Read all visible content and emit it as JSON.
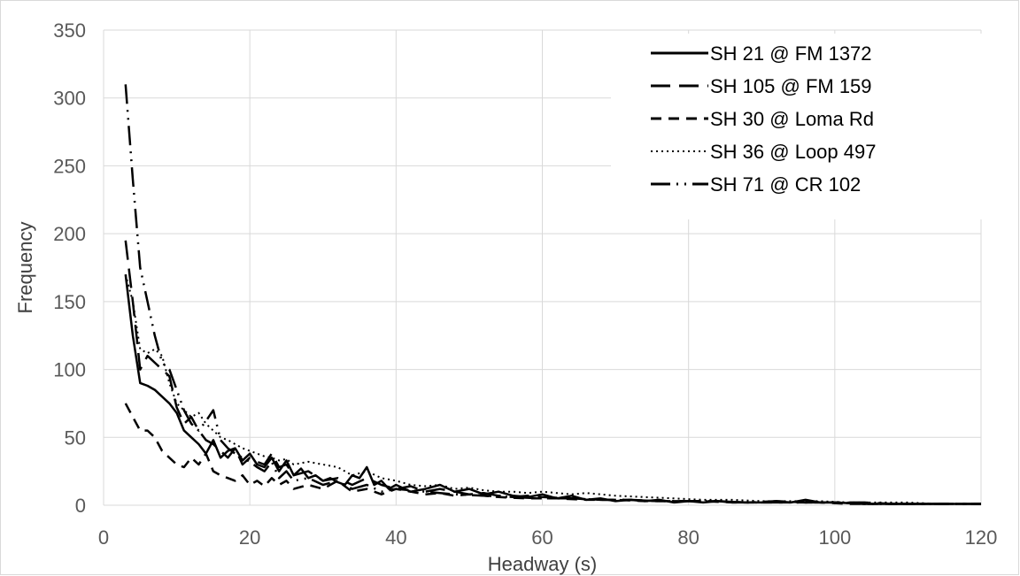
{
  "chart_data": {
    "type": "line",
    "title": "",
    "xlabel": "Headway (s)",
    "ylabel": "Frequency",
    "xlim": [
      0,
      120
    ],
    "ylim": [
      0,
      350
    ],
    "xticks": [
      "0",
      "20",
      "40",
      "60",
      "80",
      "100",
      "120"
    ],
    "yticks": [
      "0",
      "50",
      "100",
      "150",
      "200",
      "250",
      "300",
      "350"
    ],
    "grid": true,
    "legend_position": "top-right",
    "colors": {
      "line": "#000000",
      "grid": "#d9d9d9",
      "tick_text": "#595959",
      "axis_title": "#404040"
    },
    "series": [
      {
        "name": "SH 21 @ FM 1372",
        "style": "solid",
        "x": [
          3,
          4,
          5,
          6,
          7,
          8,
          9,
          10,
          11,
          12,
          13,
          14,
          15,
          16,
          17,
          18,
          19,
          20,
          21,
          22,
          23,
          24,
          25,
          26,
          27,
          28,
          29,
          30,
          31,
          32,
          33,
          34,
          35,
          36,
          37,
          38,
          39,
          40,
          42,
          44,
          46,
          48,
          50,
          52,
          54,
          56,
          58,
          60,
          62,
          64,
          66,
          68,
          70,
          72,
          74,
          76,
          78,
          80,
          82,
          84,
          86,
          88,
          90,
          92,
          94,
          96,
          98,
          100,
          104,
          108,
          112,
          116,
          120
        ],
        "values": [
          170,
          125,
          90,
          88,
          85,
          80,
          75,
          68,
          55,
          50,
          45,
          38,
          48,
          35,
          40,
          42,
          33,
          38,
          30,
          28,
          35,
          25,
          33,
          22,
          27,
          20,
          22,
          18,
          20,
          17,
          15,
          22,
          20,
          28,
          15,
          18,
          12,
          15,
          10,
          12,
          15,
          10,
          12,
          8,
          10,
          7,
          6,
          8,
          5,
          7,
          4,
          5,
          3,
          4,
          3,
          4,
          2,
          3,
          2,
          3,
          2,
          2,
          2,
          3,
          2,
          4,
          2,
          2,
          1,
          1,
          1,
          1,
          1
        ]
      },
      {
        "name": "SH 105 @ FM 159",
        "style": "longdash",
        "x": [
          3,
          4,
          5,
          6,
          7,
          8,
          9,
          10,
          11,
          12,
          13,
          14,
          15,
          16,
          17,
          18,
          19,
          20,
          21,
          22,
          23,
          24,
          25,
          26,
          28,
          30,
          32,
          34,
          36,
          38,
          40,
          42,
          44,
          46,
          48,
          50,
          52,
          54,
          56,
          58,
          60,
          64,
          68,
          72,
          76,
          80,
          84,
          88,
          92,
          96,
          100,
          104,
          108,
          112,
          116,
          120
        ],
        "values": [
          195,
          150,
          100,
          110,
          105,
          100,
          95,
          72,
          60,
          65,
          55,
          48,
          45,
          40,
          35,
          42,
          30,
          35,
          32,
          30,
          38,
          28,
          30,
          22,
          25,
          18,
          20,
          15,
          20,
          15,
          12,
          14,
          10,
          12,
          10,
          8,
          9,
          7,
          6,
          7,
          6,
          5,
          4,
          4,
          3,
          3,
          3,
          2,
          3,
          2,
          2,
          2,
          1,
          1,
          1,
          1
        ]
      },
      {
        "name": "SH 30 @ Loma Rd",
        "style": "dash",
        "x": [
          3,
          4,
          5,
          6,
          7,
          8,
          9,
          10,
          11,
          12,
          13,
          14,
          15,
          16,
          17,
          18,
          19,
          20,
          21,
          22,
          23,
          24,
          25,
          26,
          28,
          30,
          32,
          34,
          36,
          38,
          40,
          42,
          44,
          46,
          48,
          50,
          54,
          58,
          62,
          66,
          70,
          74,
          78,
          82,
          86,
          90,
          94,
          98,
          102,
          106,
          110,
          114,
          120
        ],
        "values": [
          75,
          65,
          55,
          55,
          50,
          40,
          35,
          30,
          28,
          35,
          30,
          38,
          25,
          22,
          20,
          18,
          22,
          15,
          18,
          14,
          20,
          15,
          18,
          12,
          15,
          12,
          18,
          10,
          12,
          8,
          12,
          10,
          8,
          9,
          7,
          8,
          6,
          5,
          5,
          4,
          4,
          3,
          3,
          3,
          2,
          2,
          2,
          2,
          1,
          1,
          1,
          1,
          1
        ]
      },
      {
        "name": "SH 36 @ Loop 497",
        "style": "dot",
        "x": [
          3,
          4,
          5,
          6,
          7,
          8,
          9,
          10,
          11,
          12,
          13,
          14,
          15,
          16,
          17,
          18,
          19,
          20,
          21,
          22,
          23,
          24,
          25,
          26,
          28,
          30,
          32,
          34,
          36,
          38,
          40,
          42,
          44,
          46,
          48,
          50,
          52,
          54,
          56,
          58,
          60,
          62,
          64,
          66,
          68,
          70,
          74,
          78,
          82,
          86,
          90,
          94,
          98,
          102,
          106,
          110,
          114,
          120
        ],
        "values": [
          170,
          150,
          115,
          112,
          115,
          110,
          90,
          75,
          70,
          65,
          68,
          60,
          55,
          50,
          48,
          45,
          42,
          40,
          38,
          36,
          35,
          33,
          34,
          30,
          32,
          30,
          28,
          22,
          25,
          20,
          18,
          15,
          14,
          15,
          12,
          13,
          11,
          10,
          10,
          9,
          10,
          9,
          8,
          9,
          8,
          7,
          6,
          5,
          4,
          4,
          3,
          3,
          3,
          2,
          2,
          2,
          1,
          1
        ]
      },
      {
        "name": "SH 71 @ CR 102",
        "style": "dashdotdot",
        "x": [
          3,
          4,
          5,
          6,
          7,
          8,
          9,
          10,
          11,
          12,
          13,
          14,
          15,
          16,
          17,
          18,
          19,
          20,
          21,
          22,
          23,
          24,
          25,
          26,
          28,
          30,
          32,
          34,
          36,
          38,
          40,
          44,
          48,
          52,
          56,
          60,
          64,
          68,
          72,
          76,
          80,
          84,
          88,
          92,
          96,
          100,
          104,
          108,
          112,
          116,
          120
        ],
        "values": [
          310,
          240,
          175,
          150,
          125,
          105,
          100,
          85,
          70,
          60,
          55,
          62,
          70,
          48,
          42,
          38,
          35,
          32,
          28,
          25,
          32,
          20,
          25,
          18,
          20,
          15,
          18,
          12,
          15,
          10,
          12,
          10,
          8,
          7,
          6,
          5,
          5,
          4,
          4,
          3,
          3,
          3,
          2,
          2,
          2,
          2,
          1,
          1,
          1,
          1,
          1
        ]
      }
    ]
  }
}
